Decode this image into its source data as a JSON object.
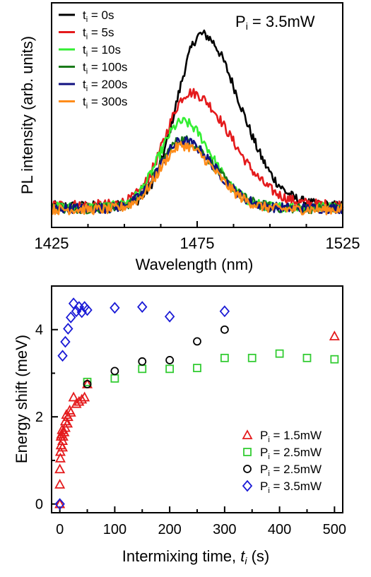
{
  "chart_data": [
    {
      "type": "line",
      "xlabel": "Wavelength (nm)",
      "ylabel": "PL intensity  (arb. units)",
      "annotation": {
        "base": "P",
        "sub": "i",
        "rest": " = 3.5mW"
      },
      "xlim": [
        1425,
        1525
      ],
      "ylim": [
        0,
        1
      ],
      "xticks": [
        1425,
        1475,
        1525
      ],
      "legend_position": "top-left",
      "series": [
        {
          "name": "0s",
          "label_base": "t",
          "label_sub": "i",
          "label_rest": " = 0s",
          "color": "#000000",
          "amp": 0.765,
          "peak": 1476.5,
          "left_width": 8.5,
          "right_width": 13,
          "baseline": 0.095
        },
        {
          "name": "5s",
          "label_base": "t",
          "label_sub": "i",
          "label_rest": " = 5s",
          "color": "#e41a1c",
          "amp": 0.5,
          "peak": 1472.5,
          "left_width": 8.5,
          "right_width": 14,
          "baseline": 0.1
        },
        {
          "name": "10s",
          "label_base": "t",
          "label_sub": "i",
          "label_rest": " = 10s",
          "color": "#33ee33",
          "amp": 0.38,
          "peak": 1470,
          "left_width": 8,
          "right_width": 10,
          "baseline": 0.09
        },
        {
          "name": "100s",
          "label_base": "t",
          "label_sub": "i",
          "label_rest": " = 100s",
          "color": "#1a7a1a",
          "amp": 0.305,
          "peak": 1470,
          "left_width": 8,
          "right_width": 11,
          "baseline": 0.085
        },
        {
          "name": "200s",
          "label_base": "t",
          "label_sub": "i",
          "label_rest": " = 200s",
          "color": "#101080",
          "amp": 0.3,
          "peak": 1470,
          "left_width": 8,
          "right_width": 11,
          "baseline": 0.085
        },
        {
          "name": "300s",
          "label_base": "t",
          "label_sub": "i",
          "label_rest": " = 300s",
          "color": "#ff8c1a",
          "amp": 0.285,
          "peak": 1470,
          "left_width": 8,
          "right_width": 11,
          "baseline": 0.08
        }
      ]
    },
    {
      "type": "scatter",
      "xlabel": "Intermixing time, ",
      "xlabel_var": {
        "base": "t",
        "sub": "i"
      },
      "xlabel_unit": " (s)",
      "ylabel": "Energy shift (meV)",
      "xlim": [
        -15,
        515
      ],
      "ylim": [
        -0.2,
        5.0
      ],
      "xticks": [
        0,
        100,
        200,
        300,
        400,
        500
      ],
      "yticks": [
        0,
        2,
        4
      ],
      "legend_position": "bottom-right",
      "series": [
        {
          "name": "1.5mW",
          "label_base": "P",
          "label_sub": "i",
          "label_rest": " =  1.5mW",
          "color": "#e41a1c",
          "marker": "triangle",
          "points": [
            [
              0,
              0
            ],
            [
              0,
              0.45
            ],
            [
              0,
              0.8
            ],
            [
              1,
              1.05
            ],
            [
              1,
              1.2
            ],
            [
              2,
              1.35
            ],
            [
              2,
              1.55
            ],
            [
              3,
              1.6
            ],
            [
              4,
              1.7
            ],
            [
              5,
              1.3
            ],
            [
              5,
              1.45
            ],
            [
              6,
              1.55
            ],
            [
              8,
              1.65
            ],
            [
              10,
              1.75
            ],
            [
              10,
              1.9
            ],
            [
              12,
              2.05
            ],
            [
              14,
              1.85
            ],
            [
              15,
              2.0
            ],
            [
              18,
              2.15
            ],
            [
              20,
              2.1
            ],
            [
              25,
              2.45
            ],
            [
              30,
              2.3
            ],
            [
              35,
              2.35
            ],
            [
              40,
              2.4
            ],
            [
              45,
              2.45
            ],
            [
              50,
              2.75
            ],
            [
              500,
              3.85
            ]
          ]
        },
        {
          "name": "2.5mW",
          "label_base": "P",
          "label_sub": "i",
          "label_rest": " =  2.5mW",
          "color": "#33cc33",
          "marker": "square",
          "points": [
            [
              50,
              2.8
            ],
            [
              100,
              2.88
            ],
            [
              150,
              3.1
            ],
            [
              200,
              3.1
            ],
            [
              250,
              3.12
            ],
            [
              300,
              3.35
            ],
            [
              350,
              3.35
            ],
            [
              400,
              3.45
            ],
            [
              450,
              3.35
            ],
            [
              500,
              3.32
            ]
          ]
        },
        {
          "name": "2.5mW",
          "label_base": "P",
          "label_sub": "i",
          "label_rest": " =  2.5mW",
          "color": "#000000",
          "marker": "circle",
          "points": [
            [
              50,
              2.75
            ],
            [
              100,
              3.05
            ],
            [
              150,
              3.27
            ],
            [
              200,
              3.3
            ],
            [
              250,
              3.73
            ],
            [
              300,
              4.0
            ]
          ]
        },
        {
          "name": "3.5mW",
          "label_base": "P",
          "label_sub": "i",
          "label_rest": " =  3.5mW",
          "color": "#1a1ad6",
          "marker": "diamond",
          "points": [
            [
              0,
              0
            ],
            [
              5,
              3.4
            ],
            [
              10,
              3.72
            ],
            [
              15,
              4.02
            ],
            [
              20,
              4.28
            ],
            [
              25,
              4.6
            ],
            [
              30,
              4.42
            ],
            [
              35,
              4.52
            ],
            [
              40,
              4.4
            ],
            [
              45,
              4.52
            ],
            [
              50,
              4.45
            ],
            [
              100,
              4.5
            ],
            [
              150,
              4.52
            ],
            [
              200,
              4.3
            ],
            [
              300,
              4.42
            ]
          ]
        }
      ]
    }
  ]
}
